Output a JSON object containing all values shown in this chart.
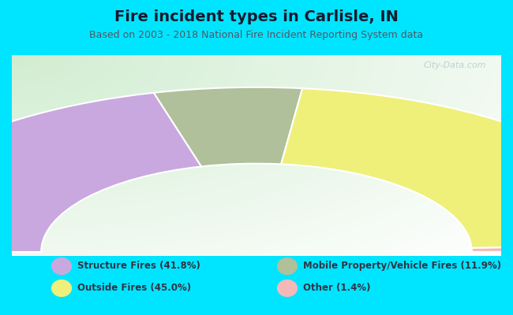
{
  "title": "Fire incident types in Carlisle, IN",
  "subtitle": "Based on 2003 - 2018 National Fire Incident Reporting System data",
  "background_color": "#00e5ff",
  "chart_bg_start": "#d4edd4",
  "chart_bg_end": "#f0f8f0",
  "watermark": "City-Data.com",
  "segments": [
    {
      "label": "Structure Fires (41.8%)",
      "value": 41.8,
      "color": "#c9a8e0"
    },
    {
      "label": "Mobile Property/Vehicle Fires (11.9%)",
      "value": 11.9,
      "color": "#afc09a"
    },
    {
      "label": "Outside Fires (45.0%)",
      "value": 45.0,
      "color": "#eff07a"
    },
    {
      "label": "Other (1.4%)",
      "value": 1.4,
      "color": "#f5b8b8"
    }
  ],
  "legend_colors": [
    "#c9a8e0",
    "#eff07a",
    "#afc09a",
    "#f5b8b8"
  ],
  "legend_labels": [
    "Structure Fires (41.8%)",
    "Outside Fires (45.0%)",
    "Mobile Property/Vehicle Fires (11.9%)",
    "Other (1.4%)"
  ],
  "title_fontsize": 14,
  "subtitle_fontsize": 9,
  "title_color": "#1a1a2e",
  "subtitle_color": "#555566"
}
